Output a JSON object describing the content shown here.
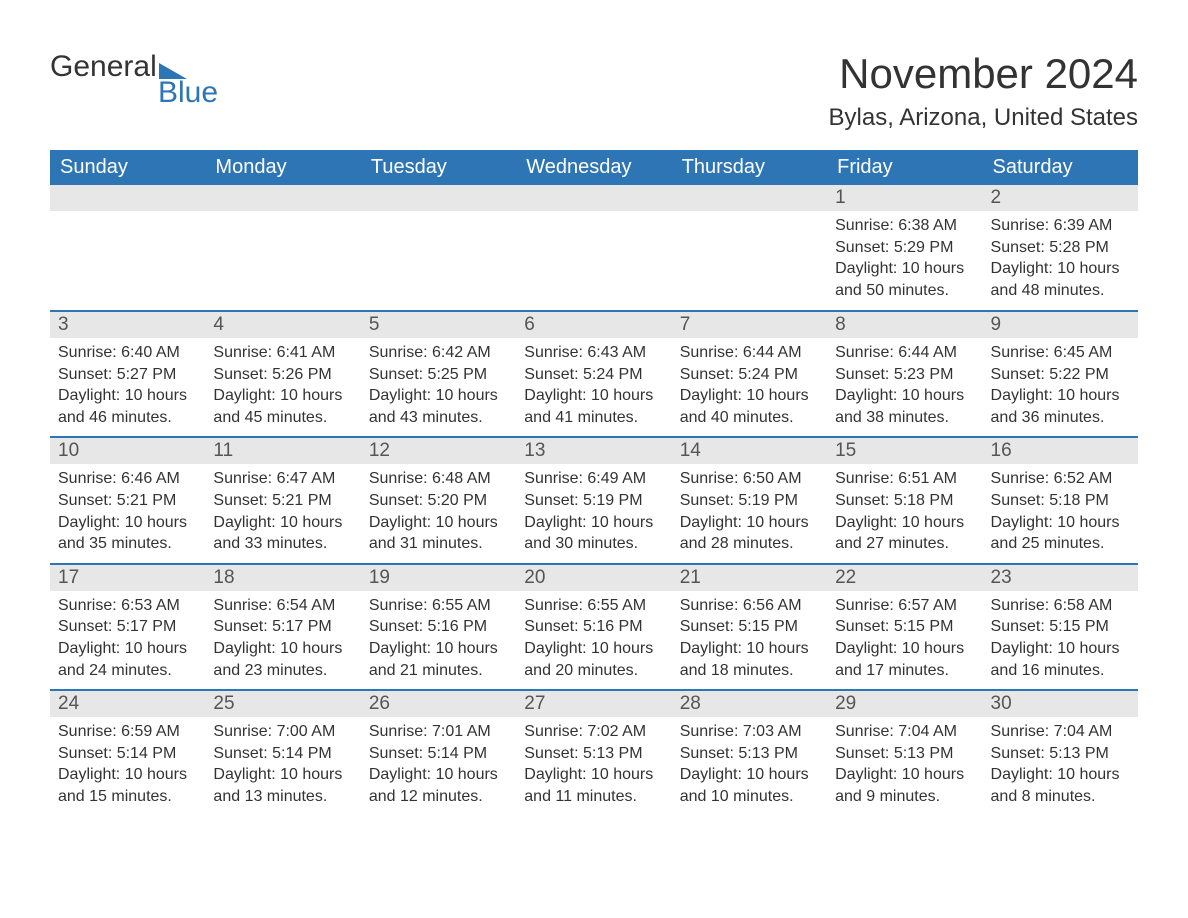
{
  "logo": {
    "text1": "General",
    "text2": "Blue"
  },
  "title": "November 2024",
  "location": "Bylas, Arizona, United States",
  "theme": {
    "header_bg": "#2e75b6",
    "header_fg": "#ffffff",
    "daynum_bg": "#e7e7e7",
    "row_border": "#2e75b6",
    "text_color": "#333333",
    "page_bg": "#ffffff"
  },
  "weekdays": [
    "Sunday",
    "Monday",
    "Tuesday",
    "Wednesday",
    "Thursday",
    "Friday",
    "Saturday"
  ],
  "weeks": [
    [
      null,
      null,
      null,
      null,
      null,
      {
        "n": "1",
        "sr": "6:38 AM",
        "ss": "5:29 PM",
        "dl": "10 hours and 50 minutes."
      },
      {
        "n": "2",
        "sr": "6:39 AM",
        "ss": "5:28 PM",
        "dl": "10 hours and 48 minutes."
      }
    ],
    [
      {
        "n": "3",
        "sr": "6:40 AM",
        "ss": "5:27 PM",
        "dl": "10 hours and 46 minutes."
      },
      {
        "n": "4",
        "sr": "6:41 AM",
        "ss": "5:26 PM",
        "dl": "10 hours and 45 minutes."
      },
      {
        "n": "5",
        "sr": "6:42 AM",
        "ss": "5:25 PM",
        "dl": "10 hours and 43 minutes."
      },
      {
        "n": "6",
        "sr": "6:43 AM",
        "ss": "5:24 PM",
        "dl": "10 hours and 41 minutes."
      },
      {
        "n": "7",
        "sr": "6:44 AM",
        "ss": "5:24 PM",
        "dl": "10 hours and 40 minutes."
      },
      {
        "n": "8",
        "sr": "6:44 AM",
        "ss": "5:23 PM",
        "dl": "10 hours and 38 minutes."
      },
      {
        "n": "9",
        "sr": "6:45 AM",
        "ss": "5:22 PM",
        "dl": "10 hours and 36 minutes."
      }
    ],
    [
      {
        "n": "10",
        "sr": "6:46 AM",
        "ss": "5:21 PM",
        "dl": "10 hours and 35 minutes."
      },
      {
        "n": "11",
        "sr": "6:47 AM",
        "ss": "5:21 PM",
        "dl": "10 hours and 33 minutes."
      },
      {
        "n": "12",
        "sr": "6:48 AM",
        "ss": "5:20 PM",
        "dl": "10 hours and 31 minutes."
      },
      {
        "n": "13",
        "sr": "6:49 AM",
        "ss": "5:19 PM",
        "dl": "10 hours and 30 minutes."
      },
      {
        "n": "14",
        "sr": "6:50 AM",
        "ss": "5:19 PM",
        "dl": "10 hours and 28 minutes."
      },
      {
        "n": "15",
        "sr": "6:51 AM",
        "ss": "5:18 PM",
        "dl": "10 hours and 27 minutes."
      },
      {
        "n": "16",
        "sr": "6:52 AM",
        "ss": "5:18 PM",
        "dl": "10 hours and 25 minutes."
      }
    ],
    [
      {
        "n": "17",
        "sr": "6:53 AM",
        "ss": "5:17 PM",
        "dl": "10 hours and 24 minutes."
      },
      {
        "n": "18",
        "sr": "6:54 AM",
        "ss": "5:17 PM",
        "dl": "10 hours and 23 minutes."
      },
      {
        "n": "19",
        "sr": "6:55 AM",
        "ss": "5:16 PM",
        "dl": "10 hours and 21 minutes."
      },
      {
        "n": "20",
        "sr": "6:55 AM",
        "ss": "5:16 PM",
        "dl": "10 hours and 20 minutes."
      },
      {
        "n": "21",
        "sr": "6:56 AM",
        "ss": "5:15 PM",
        "dl": "10 hours and 18 minutes."
      },
      {
        "n": "22",
        "sr": "6:57 AM",
        "ss": "5:15 PM",
        "dl": "10 hours and 17 minutes."
      },
      {
        "n": "23",
        "sr": "6:58 AM",
        "ss": "5:15 PM",
        "dl": "10 hours and 16 minutes."
      }
    ],
    [
      {
        "n": "24",
        "sr": "6:59 AM",
        "ss": "5:14 PM",
        "dl": "10 hours and 15 minutes."
      },
      {
        "n": "25",
        "sr": "7:00 AM",
        "ss": "5:14 PM",
        "dl": "10 hours and 13 minutes."
      },
      {
        "n": "26",
        "sr": "7:01 AM",
        "ss": "5:14 PM",
        "dl": "10 hours and 12 minutes."
      },
      {
        "n": "27",
        "sr": "7:02 AM",
        "ss": "5:13 PM",
        "dl": "10 hours and 11 minutes."
      },
      {
        "n": "28",
        "sr": "7:03 AM",
        "ss": "5:13 PM",
        "dl": "10 hours and 10 minutes."
      },
      {
        "n": "29",
        "sr": "7:04 AM",
        "ss": "5:13 PM",
        "dl": "10 hours and 9 minutes."
      },
      {
        "n": "30",
        "sr": "7:04 AM",
        "ss": "5:13 PM",
        "dl": "10 hours and 8 minutes."
      }
    ]
  ],
  "labels": {
    "sunrise": "Sunrise: ",
    "sunset": "Sunset: ",
    "daylight": "Daylight: "
  }
}
